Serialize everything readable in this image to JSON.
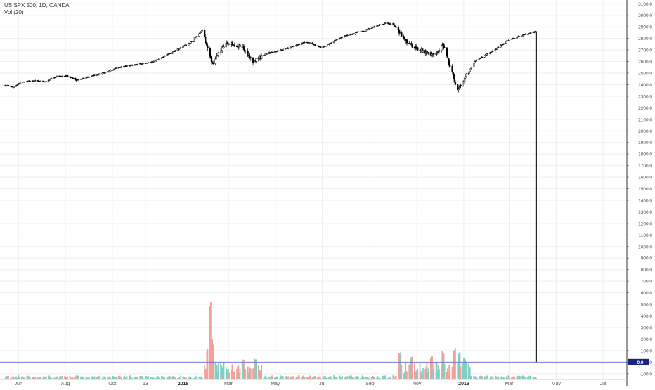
{
  "legend": {
    "title": "US SPX 500, 1D, OANDA",
    "volume_indicator": "Vol (20)"
  },
  "colors": {
    "candle": "#000000",
    "volume_up": "#7fcfc4",
    "volume_down": "#f3a09a",
    "grid": "#eeeeee",
    "axis_text": "#555555",
    "hline": "#6b6bd6",
    "price_tag_bg": "#1a237e"
  },
  "chart_data": {
    "type": "candlestick",
    "x_ticks": [
      "Jun",
      "Aug",
      "Oct",
      "13",
      "2018",
      "Mar",
      "May",
      "Jul",
      "Sep",
      "Nov",
      "2019",
      "Mar",
      "May",
      "Jul"
    ],
    "x_ticks_bold": [
      "2018",
      "2019"
    ],
    "y_ticks": [
      "3100.0",
      "3000.0",
      "2900.0",
      "2800.0",
      "2700.0",
      "2600.0",
      "2500.0",
      "2400.0",
      "2300.0",
      "2200.0",
      "2100.0",
      "2000.0",
      "1900.0",
      "1800.0",
      "1700.0",
      "1600.0",
      "1500.0",
      "1400.0",
      "1300.0",
      "1200.0",
      "1100.0",
      "1000.0",
      "900.0",
      "800.0",
      "700.0",
      "600.0",
      "500.0",
      "400.0",
      "300.0",
      "200.0",
      "100.0",
      "0.0",
      "-100.0"
    ],
    "ylim": [
      -150,
      3120
    ],
    "price_path": [
      [
        "2017-05-15",
        2395
      ],
      [
        "2017-05-25",
        2380
      ],
      [
        "2017-06-05",
        2420
      ],
      [
        "2017-06-20",
        2435
      ],
      [
        "2017-07-05",
        2425
      ],
      [
        "2017-07-20",
        2470
      ],
      [
        "2017-08-05",
        2475
      ],
      [
        "2017-08-15",
        2440
      ],
      [
        "2017-09-01",
        2470
      ],
      [
        "2017-09-20",
        2500
      ],
      [
        "2017-10-10",
        2550
      ],
      [
        "2017-11-01",
        2575
      ],
      [
        "2017-11-20",
        2590
      ],
      [
        "2017-12-15",
        2670
      ],
      [
        "2018-01-10",
        2760
      ],
      [
        "2018-01-26",
        2872
      ],
      [
        "2018-02-08",
        2580
      ],
      [
        "2018-02-26",
        2770
      ],
      [
        "2018-03-20",
        2720
      ],
      [
        "2018-04-02",
        2600
      ],
      [
        "2018-04-20",
        2670
      ],
      [
        "2018-05-10",
        2700
      ],
      [
        "2018-06-10",
        2770
      ],
      [
        "2018-07-01",
        2720
      ],
      [
        "2018-07-25",
        2810
      ],
      [
        "2018-08-25",
        2870
      ],
      [
        "2018-09-20",
        2930
      ],
      [
        "2018-10-01",
        2925
      ],
      [
        "2018-10-20",
        2760
      ],
      [
        "2018-11-05",
        2700
      ],
      [
        "2018-11-25",
        2650
      ],
      [
        "2018-12-05",
        2750
      ],
      [
        "2018-12-24",
        2350
      ],
      [
        "2019-01-15",
        2600
      ],
      [
        "2019-02-10",
        2700
      ],
      [
        "2019-03-01",
        2790
      ],
      [
        "2019-03-20",
        2830
      ],
      [
        "2019-04-05",
        2860
      ]
    ],
    "last_price": 2860,
    "volume_baseline": 0,
    "volume_baseline_label": "0.0",
    "volume_spikes": [
      [
        "2018-02-05",
        670
      ],
      [
        "2018-02-08",
        350
      ],
      [
        "2018-02-02",
        240
      ],
      [
        "2018-03-20",
        180
      ],
      [
        "2018-04-05",
        200
      ],
      [
        "2018-10-10",
        240
      ],
      [
        "2018-10-25",
        200
      ],
      [
        "2018-11-20",
        210
      ],
      [
        "2018-12-05",
        260
      ],
      [
        "2018-12-20",
        290
      ],
      [
        "2018-12-26",
        250
      ],
      [
        "2019-01-02",
        200
      ]
    ]
  }
}
